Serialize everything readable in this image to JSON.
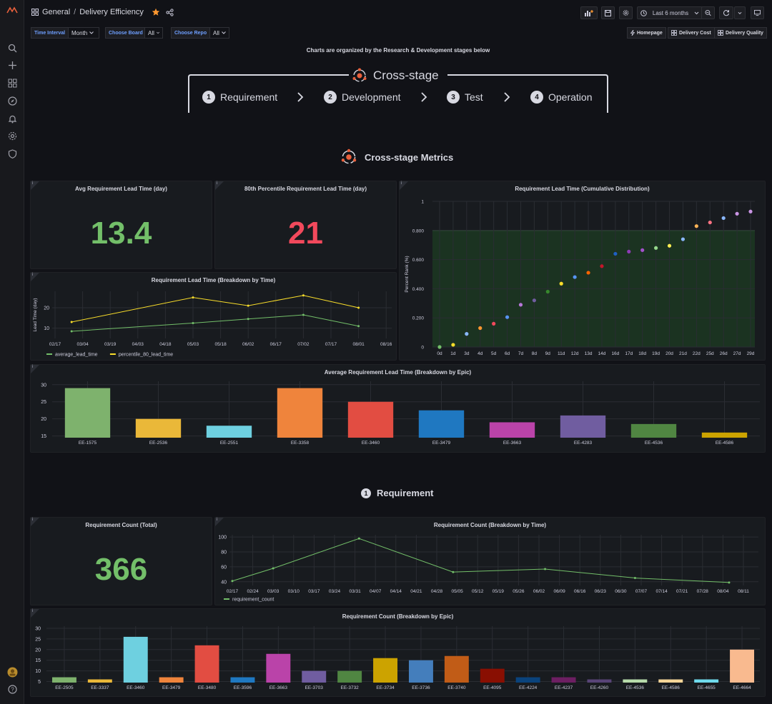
{
  "header": {
    "breadcrumb_folder": "General",
    "breadcrumb_sep": "/",
    "breadcrumb_dashboard": "Delivery Efficiency",
    "time_range": "Last 6 months"
  },
  "variables": {
    "time_interval_label": "Time Interval",
    "time_interval_value": "Month",
    "board_label": "Choose Board",
    "board_value": "All",
    "repo_label": "Choose Repo",
    "repo_value": "All"
  },
  "links": {
    "homepage": "Homepage",
    "delivery_cost": "Delivery Cost",
    "delivery_quality": "Delivery Quality"
  },
  "intro_text": "Charts are organized by the Research & Development stages below",
  "stages": {
    "title": "Cross-stage",
    "steps": [
      {
        "num": "1",
        "label": "Requirement"
      },
      {
        "num": "2",
        "label": "Development"
      },
      {
        "num": "3",
        "label": "Test"
      },
      {
        "num": "4",
        "label": "Operation"
      }
    ]
  },
  "section_cross": "Cross-stage Metrics",
  "section_req_num": "1",
  "section_req": "Requirement",
  "stats": {
    "avg_lead_title": "Avg Requirement Lead Time (day)",
    "avg_lead_value": "13.4",
    "p80_lead_title": "80th Percentile Requirement Lead Time (day)",
    "p80_lead_value": "21",
    "req_count_title": "Requirement Count (Total)",
    "req_count_value": "366"
  },
  "colors": {
    "green": "#73bf69",
    "red": "#f2495c",
    "yellow": "#fade2a"
  },
  "chart_data": [
    {
      "id": "lead_cdf",
      "type": "scatter",
      "title": "Requirement Lead Time (Cumulative Distribution)",
      "ylabel": "Percent Rank (%)",
      "ylim": [
        0,
        1
      ],
      "yticks": [
        "0",
        "0.200",
        "0.400",
        "0.600",
        "0.800",
        "1"
      ],
      "threshold": 0.8,
      "categories": [
        "0d",
        "1d",
        "3d",
        "4d",
        "5d",
        "6d",
        "7d",
        "8d",
        "9d",
        "11d",
        "12d",
        "13d",
        "14d",
        "16d",
        "17d",
        "18d",
        "19d",
        "20d",
        "21d",
        "22d",
        "25d",
        "26d",
        "27d",
        "29d"
      ],
      "values": [
        0.0,
        0.015,
        0.09,
        0.13,
        0.16,
        0.205,
        0.29,
        0.32,
        0.38,
        0.435,
        0.48,
        0.51,
        0.555,
        0.64,
        0.655,
        0.665,
        0.68,
        0.695,
        0.74,
        0.83,
        0.855,
        0.885,
        0.915,
        0.93
      ],
      "colors": [
        "#73bf69",
        "#fade2a",
        "#8ab8ff",
        "#ff9830",
        "#f2495c",
        "#5794f2",
        "#b877d9",
        "#705da0",
        "#37872d",
        "#fade2a",
        "#5794f2",
        "#fa6400",
        "#c4162a",
        "#1f60c4",
        "#8f3bb8",
        "#a352cc",
        "#96d98d",
        "#ffee52",
        "#8ab8ff",
        "#ffb357",
        "#ff7383",
        "#8ab8ff",
        "#ca95e5",
        "#ca95e5"
      ]
    },
    {
      "id": "lead_time",
      "type": "line",
      "title": "Requirement Lead Time (Breakdown by Time)",
      "ylabel": "Lead Time (day)",
      "ylim": [
        5,
        28
      ],
      "yticks": [
        "10",
        "20"
      ],
      "x_ticks": [
        "02/17",
        "03/04",
        "03/19",
        "04/03",
        "04/18",
        "05/03",
        "05/18",
        "06/02",
        "06/17",
        "07/02",
        "07/17",
        "08/01",
        "08/16"
      ],
      "series": [
        {
          "name": "average_lead_time",
          "color": "#73bf69",
          "points": [
            [
              0.6,
              8.5
            ],
            [
              5.0,
              12.5
            ],
            [
              7.0,
              14.5
            ],
            [
              9.0,
              16.5
            ],
            [
              11.0,
              11.0
            ]
          ]
        },
        {
          "name": "percentile_80_lead_time",
          "color": "#fade2a",
          "points": [
            [
              0.6,
              13.0
            ],
            [
              5.0,
              25.0
            ],
            [
              7.0,
              21.0
            ],
            [
              9.0,
              26.0
            ],
            [
              11.0,
              20.0
            ]
          ]
        }
      ]
    },
    {
      "id": "lead_epic",
      "type": "bar",
      "title": "Average Requirement Lead Time (Breakdown by Epic)",
      "ylim": [
        14.5,
        31
      ],
      "yticks": [
        "15",
        "20",
        "25",
        "30"
      ],
      "categories": [
        "EE-1575",
        "EE-2536",
        "EE-2551",
        "EE-3358",
        "EE-3460",
        "EE-3479",
        "EE-3663",
        "EE-4283",
        "EE-4536",
        "EE-4586"
      ],
      "values": [
        29,
        20,
        18,
        29,
        25,
        22.5,
        19,
        21,
        18.5,
        16
      ],
      "colors": [
        "#7eb26d",
        "#eab839",
        "#6ed0e0",
        "#ef843c",
        "#e24d42",
        "#1f78c1",
        "#ba43a9",
        "#705da0",
        "#508642",
        "#cca300"
      ]
    },
    {
      "id": "req_time",
      "type": "line",
      "title": "Requirement Count (Breakdown by Time)",
      "ylim": [
        35,
        103
      ],
      "yticks": [
        "40",
        "60",
        "80",
        "100"
      ],
      "x_ticks": [
        "02/17",
        "02/24",
        "03/03",
        "03/10",
        "03/17",
        "03/24",
        "03/31",
        "04/07",
        "04/14",
        "04/21",
        "04/28",
        "05/05",
        "05/12",
        "05/19",
        "05/26",
        "06/02",
        "06/09",
        "06/16",
        "06/23",
        "06/30",
        "07/07",
        "07/14",
        "07/21",
        "07/28",
        "08/04",
        "08/11"
      ],
      "series": [
        {
          "name": "requirement_count",
          "color": "#73bf69",
          "points": [
            [
              0,
              41
            ],
            [
              2,
              58
            ],
            [
              6.2,
              98
            ],
            [
              10.8,
              53
            ],
            [
              15.3,
              57
            ],
            [
              19.7,
              45
            ],
            [
              24.3,
              39
            ]
          ]
        }
      ]
    },
    {
      "id": "req_epic",
      "type": "bar",
      "title": "Requirement Count (Breakdown by Epic)",
      "ylim": [
        4.5,
        31
      ],
      "yticks": [
        "5",
        "10",
        "15",
        "20",
        "25",
        "30"
      ],
      "categories": [
        "EE-2505",
        "EE-3337",
        "EE-3460",
        "EE-3479",
        "EE-3480",
        "EE-3596",
        "EE-3663",
        "EE-3703",
        "EE-3732",
        "EE-3734",
        "EE-3736",
        "EE-3740",
        "EE-4095",
        "EE-4224",
        "EE-4237",
        "EE-4260",
        "EE-4536",
        "EE-4586",
        "EE-4655",
        "EE-4664"
      ],
      "values": [
        7,
        6,
        26,
        7,
        22,
        7,
        18,
        10,
        10,
        16,
        15,
        17,
        11,
        7,
        7,
        6,
        6,
        6,
        6,
        20
      ],
      "colors": [
        "#7eb26d",
        "#eab839",
        "#6ed0e0",
        "#ef843c",
        "#e24d42",
        "#1f78c1",
        "#ba43a9",
        "#705da0",
        "#508642",
        "#cca300",
        "#447ebc",
        "#c15c17",
        "#890f02",
        "#0a437c",
        "#6d1f62",
        "#584477",
        "#b7dbab",
        "#f4d598",
        "#70dbed",
        "#f9ba8f"
      ]
    }
  ]
}
